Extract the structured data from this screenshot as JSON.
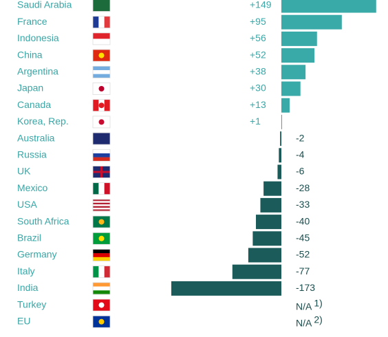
{
  "chart_data": {
    "type": "bar",
    "orientation": "horizontal",
    "categories": [
      "Saudi Arabia",
      "France",
      "Indonesia",
      "China",
      "Argentina",
      "Japan",
      "Canada",
      "Korea, Rep.",
      "Australia",
      "Russia",
      "UK",
      "Mexico",
      "USA",
      "South Africa",
      "Brazil",
      "Germany",
      "Italy",
      "India",
      "Turkey",
      "EU"
    ],
    "values": [
      149,
      95,
      56,
      52,
      38,
      30,
      13,
      1,
      -2,
      -4,
      -6,
      -28,
      -33,
      -40,
      -45,
      -52,
      -77,
      -173,
      null,
      null
    ],
    "value_labels": [
      "+149",
      "+95",
      "+56",
      "+52",
      "+38",
      "+30",
      "+13",
      "+1",
      "-2",
      "-4",
      "-6",
      "-28",
      "-33",
      "-40",
      "-45",
      "-52",
      "-77",
      "-173",
      "N/A",
      "N/A"
    ],
    "value_label_notes": [
      null,
      null,
      null,
      null,
      null,
      null,
      null,
      null,
      null,
      null,
      null,
      null,
      null,
      null,
      null,
      null,
      null,
      null,
      "1)",
      "2)"
    ],
    "positive_color": "#3aaaa8",
    "negative_color": "#1b5b5a"
  }
}
